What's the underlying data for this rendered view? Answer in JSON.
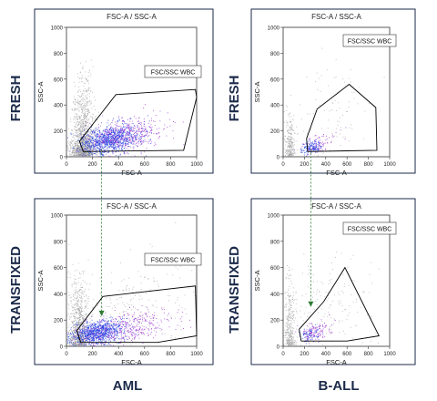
{
  "row_labels": [
    "FRESH",
    "TRANSFIXED"
  ],
  "column_labels": [
    "AML",
    "B-ALL"
  ],
  "colors": {
    "background_events": "#a0a0a0",
    "blast_core": "#1f3fe0",
    "blast_edge": "#9a2fd0",
    "gate_outline": "#000000",
    "link_line": "#2e7d32",
    "label_navy": "#1b2a4a"
  },
  "chart_data": [
    {
      "type": "scatter",
      "panel": "AML fresh",
      "title": "FSC-A / SSC-A",
      "xlabel": "FSC-A",
      "ylabel": "SSC-A",
      "xlim": [
        0,
        1000
      ],
      "ylim": [
        0,
        1000
      ],
      "xticks": [
        0,
        200,
        400,
        600,
        800,
        1000
      ],
      "yticks": [
        0,
        200,
        400,
        600,
        800,
        1000
      ],
      "gate_label": "FSC/SSC WBC",
      "gate_polygon": [
        [
          130,
          40
        ],
        [
          100,
          120
        ],
        [
          380,
          480
        ],
        [
          990,
          520
        ],
        [
          1000,
          460
        ],
        [
          900,
          50
        ]
      ],
      "populations": [
        {
          "name": "",
          "kind": "debris",
          "center": [
            130,
            120
          ],
          "spread": [
            70,
            350
          ],
          "count": 1300,
          "color": "#a0a0a0"
        },
        {
          "name": "",
          "kind": "lymph",
          "center": [
            90,
            60
          ],
          "spread": [
            60,
            40
          ],
          "count": 250,
          "color": "#a0a0a0"
        },
        {
          "name": "",
          "kind": "blasts",
          "center": [
            320,
            130
          ],
          "spread": [
            120,
            55
          ],
          "count": 1100,
          "color": "#1f3fe0"
        },
        {
          "name": "",
          "kind": "blasts-tail",
          "center": [
            480,
            180
          ],
          "spread": [
            150,
            70
          ],
          "count": 350,
          "color": "#9a2fd0"
        }
      ]
    },
    {
      "type": "scatter",
      "panel": "B-ALL fresh",
      "title": "FSC-A / SSC-A",
      "xlabel": "FSC-A",
      "ylabel": "SSC-A",
      "xlim": [
        0,
        1000
      ],
      "ylim": [
        0,
        1000
      ],
      "xticks": [
        0,
        200,
        400,
        600,
        800,
        1000
      ],
      "yticks": [
        0,
        200,
        400,
        600,
        800,
        1000
      ],
      "gate_label": "FSC/SSC WBC",
      "gate_polygon": [
        [
          230,
          40
        ],
        [
          220,
          140
        ],
        [
          320,
          370
        ],
        [
          620,
          560
        ],
        [
          870,
          380
        ],
        [
          880,
          50
        ]
      ],
      "populations": [
        {
          "name": "",
          "kind": "debris",
          "center": [
            60,
            80
          ],
          "spread": [
            40,
            200
          ],
          "count": 260,
          "color": "#a0a0a0"
        },
        {
          "name": "",
          "kind": "scatter",
          "center": [
            400,
            300
          ],
          "spread": [
            220,
            220
          ],
          "count": 110,
          "color": "#a0a0a0"
        },
        {
          "name": "",
          "kind": "blasts",
          "center": [
            260,
            70
          ],
          "spread": [
            50,
            22
          ],
          "count": 160,
          "color": "#1f3fe0"
        },
        {
          "name": "",
          "kind": "blasts-tail",
          "center": [
            340,
            100
          ],
          "spread": [
            90,
            40
          ],
          "count": 70,
          "color": "#9a2fd0"
        }
      ]
    },
    {
      "type": "scatter",
      "panel": "AML transfixed",
      "title": "FSC-A / SSC-A",
      "xlabel": "FSC-A",
      "ylabel": "SSC-A",
      "xlim": [
        0,
        1000
      ],
      "ylim": [
        0,
        1000
      ],
      "xticks": [
        0,
        200,
        400,
        600,
        800,
        1000
      ],
      "yticks": [
        0,
        200,
        400,
        600,
        800,
        1000
      ],
      "gate_label": "FSC/SSC WBC",
      "gate_polygon": [
        [
          110,
          30
        ],
        [
          80,
          120
        ],
        [
          280,
          380
        ],
        [
          990,
          460
        ],
        [
          1000,
          80
        ],
        [
          700,
          30
        ]
      ],
      "populations": [
        {
          "name": "",
          "kind": "debris",
          "center": [
            90,
            110
          ],
          "spread": [
            60,
            300
          ],
          "count": 900,
          "color": "#a0a0a0"
        },
        {
          "name": "",
          "kind": "scatter",
          "center": [
            420,
            280
          ],
          "spread": [
            300,
            180
          ],
          "count": 300,
          "color": "#a0a0a0"
        },
        {
          "name": "",
          "kind": "blasts",
          "center": [
            240,
            110
          ],
          "spread": [
            100,
            45
          ],
          "count": 1000,
          "color": "#1f3fe0"
        },
        {
          "name": "",
          "kind": "blasts-tail",
          "center": [
            480,
            150
          ],
          "spread": [
            180,
            60
          ],
          "count": 350,
          "color": "#9a2fd0"
        }
      ]
    },
    {
      "type": "scatter",
      "panel": "B-ALL transfixed",
      "title": "FSC-A / SSC-A",
      "xlabel": "FSC-A",
      "ylabel": "SSC-A",
      "xlim": [
        0,
        1000
      ],
      "ylim": [
        0,
        1000
      ],
      "xticks": [
        0,
        200,
        400,
        600,
        800,
        1000
      ],
      "yticks": [
        0,
        200,
        400,
        600,
        800,
        1000
      ],
      "gate_label": "FSC/SSC WBC",
      "gate_polygon": [
        [
          170,
          40
        ],
        [
          150,
          130
        ],
        [
          380,
          340
        ],
        [
          580,
          600
        ],
        [
          900,
          80
        ],
        [
          600,
          40
        ]
      ],
      "populations": [
        {
          "name": "",
          "kind": "debris",
          "center": [
            60,
            100
          ],
          "spread": [
            40,
            300
          ],
          "count": 350,
          "color": "#a0a0a0"
        },
        {
          "name": "",
          "kind": "scatter",
          "center": [
            380,
            260
          ],
          "spread": [
            220,
            200
          ],
          "count": 200,
          "color": "#a0a0a0"
        },
        {
          "name": "",
          "kind": "blasts",
          "center": [
            240,
            90
          ],
          "spread": [
            45,
            30
          ],
          "count": 90,
          "color": "#1f3fe0"
        },
        {
          "name": "",
          "kind": "blasts-tail",
          "center": [
            300,
            110
          ],
          "spread": [
            70,
            40
          ],
          "count": 110,
          "color": "#9a2fd0"
        }
      ]
    }
  ]
}
